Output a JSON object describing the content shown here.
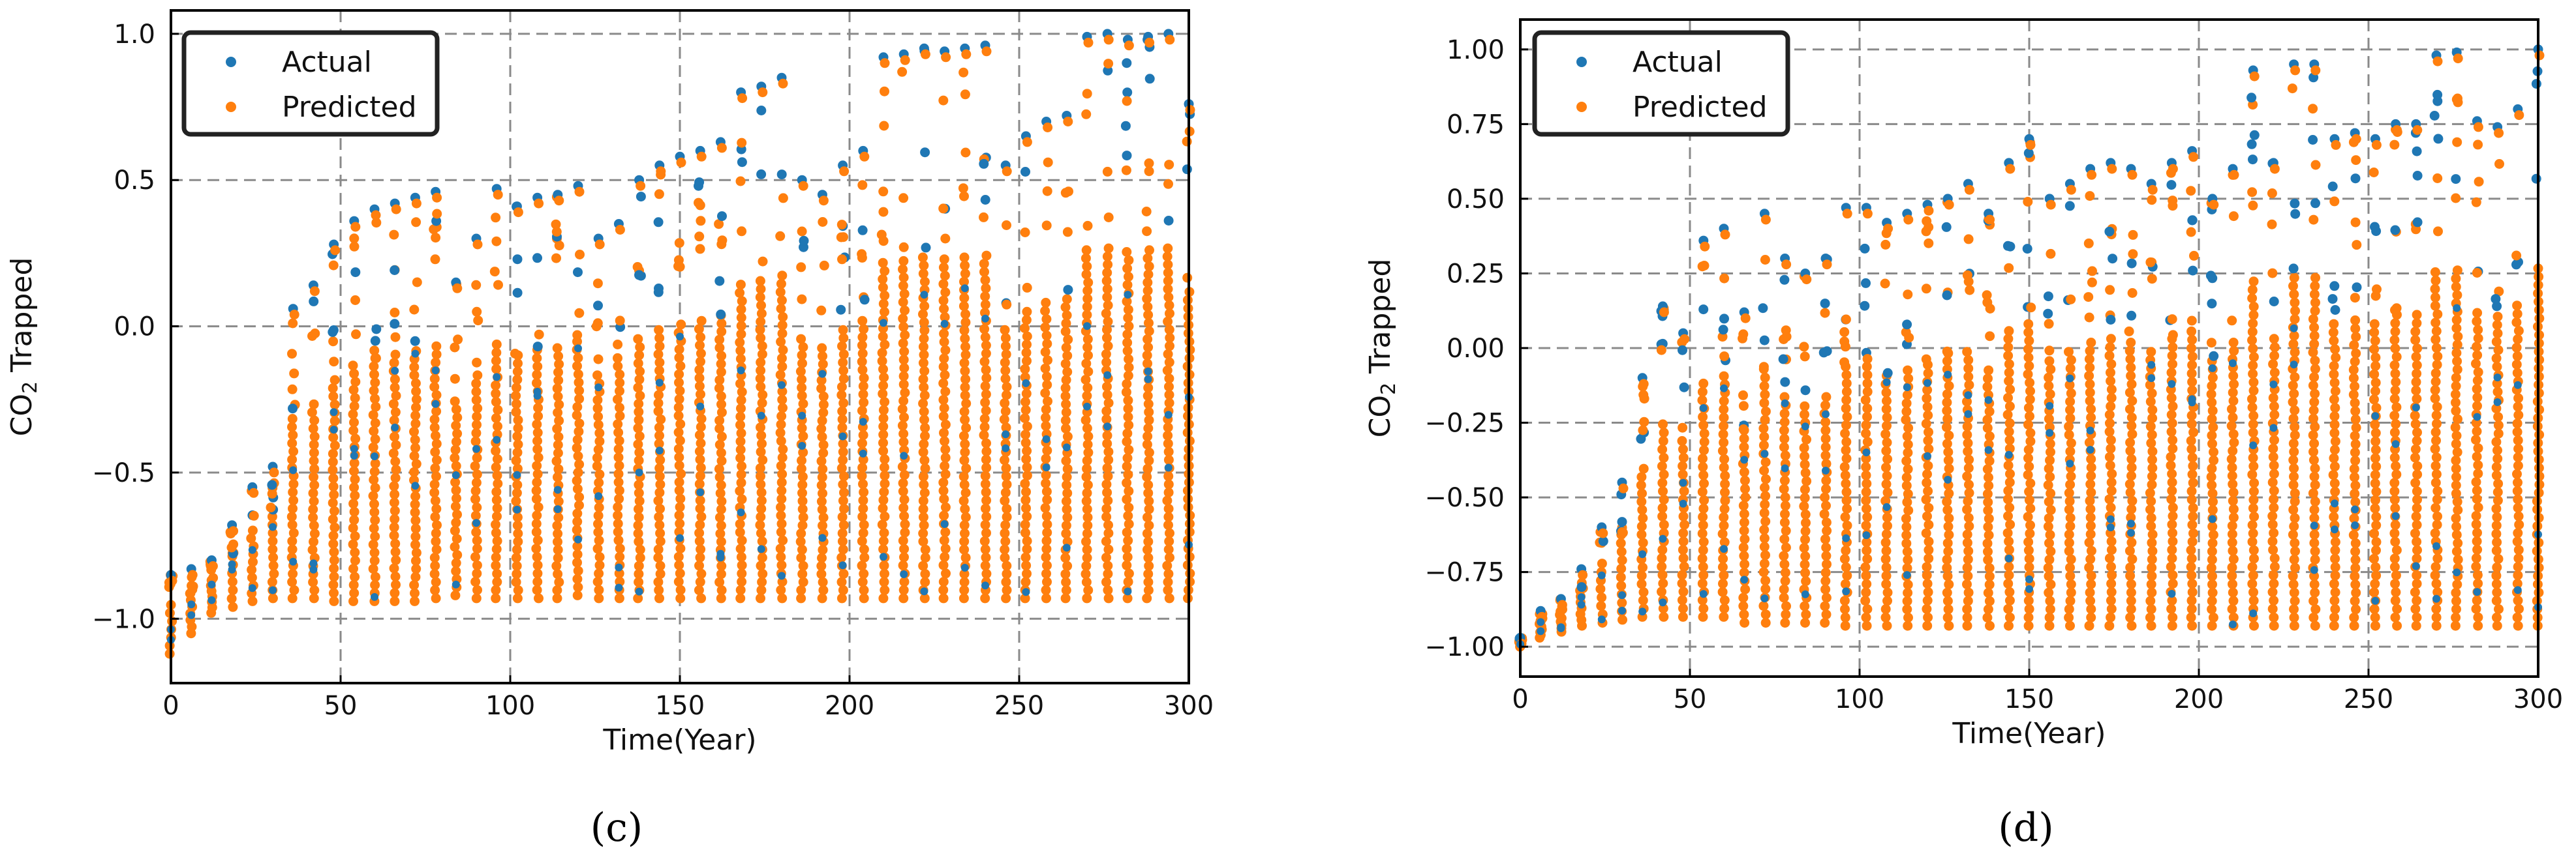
{
  "chart_data": [
    {
      "type": "scatter",
      "panel_label": "(c)",
      "xlabel": "Time(Year)",
      "ylabel_main": "CO",
      "ylabel_sub": "2",
      "ylabel_rest": " Trapped",
      "xlim": [
        0,
        300
      ],
      "ylim": [
        -1.22,
        1.08
      ],
      "xticks": [
        0,
        50,
        100,
        150,
        200,
        250,
        300
      ],
      "xtick_labels": [
        "0",
        "50",
        "100",
        "150",
        "200",
        "250",
        "300"
      ],
      "yticks": [
        -1.0,
        -0.5,
        0.0,
        0.5,
        1.0
      ],
      "ytick_labels": [
        "−1.0",
        "−0.5",
        "0.0",
        "0.5",
        "1.0"
      ],
      "grid": true,
      "legend_position": "top-left",
      "series": [
        {
          "name": "Actual",
          "color": "#1f77b4"
        },
        {
          "name": "Predicted",
          "color": "#ff7f0e"
        }
      ],
      "time_step": 6,
      "columns": [
        [
          0,
          -1.12,
          -0.85
        ],
        [
          6,
          -1.05,
          -0.83
        ],
        [
          12,
          -0.98,
          -0.8
        ],
        [
          18,
          -0.96,
          -0.68
        ],
        [
          24,
          -0.94,
          -0.55
        ],
        [
          30,
          -0.93,
          -0.48
        ],
        [
          36,
          -0.93,
          0.06
        ],
        [
          42,
          -0.93,
          0.14
        ],
        [
          48,
          -0.94,
          0.28
        ],
        [
          54,
          -0.94,
          0.36
        ],
        [
          60,
          -0.94,
          0.4
        ],
        [
          66,
          -0.94,
          0.42
        ],
        [
          72,
          -0.94,
          0.44
        ],
        [
          78,
          -0.93,
          0.46
        ],
        [
          84,
          -0.92,
          0.15
        ],
        [
          90,
          -0.93,
          0.3
        ],
        [
          96,
          -0.93,
          0.47
        ],
        [
          102,
          -0.93,
          0.41
        ],
        [
          108,
          -0.93,
          0.44
        ],
        [
          114,
          -0.93,
          0.45
        ],
        [
          120,
          -0.92,
          0.48
        ],
        [
          126,
          -0.93,
          0.3
        ],
        [
          132,
          -0.93,
          0.35
        ],
        [
          138,
          -0.93,
          0.5
        ],
        [
          144,
          -0.93,
          0.55
        ],
        [
          150,
          -0.93,
          0.58
        ],
        [
          156,
          -0.93,
          0.6
        ],
        [
          162,
          -0.93,
          0.63
        ],
        [
          168,
          -0.93,
          0.8
        ],
        [
          174,
          -0.93,
          0.82
        ],
        [
          180,
          -0.93,
          0.85
        ],
        [
          186,
          -0.93,
          0.5
        ],
        [
          192,
          -0.93,
          0.45
        ],
        [
          198,
          -0.93,
          0.55
        ],
        [
          204,
          -0.93,
          0.6
        ],
        [
          210,
          -0.93,
          0.92
        ],
        [
          216,
          -0.93,
          0.93
        ],
        [
          222,
          -0.93,
          0.95
        ],
        [
          228,
          -0.93,
          0.94
        ],
        [
          234,
          -0.93,
          0.95
        ],
        [
          240,
          -0.93,
          0.96
        ],
        [
          246,
          -0.93,
          0.55
        ],
        [
          252,
          -0.93,
          0.65
        ],
        [
          258,
          -0.93,
          0.7
        ],
        [
          264,
          -0.93,
          0.72
        ],
        [
          270,
          -0.93,
          0.99
        ],
        [
          276,
          -0.93,
          1.0
        ],
        [
          282,
          -0.93,
          0.98
        ],
        [
          288,
          -0.93,
          0.99
        ],
        [
          294,
          -0.93,
          1.0
        ],
        [
          300,
          -0.93,
          0.76
        ]
      ]
    },
    {
      "type": "scatter",
      "panel_label": "(d)",
      "xlabel": "Time(Year)",
      "ylabel_main": "CO",
      "ylabel_sub": "2",
      "ylabel_rest": " Trapped",
      "xlim": [
        0,
        300
      ],
      "ylim": [
        -1.1,
        1.1
      ],
      "xticks": [
        0,
        50,
        100,
        150,
        200,
        250,
        300
      ],
      "xtick_labels": [
        "0",
        "50",
        "100",
        "150",
        "200",
        "250",
        "300"
      ],
      "yticks": [
        -1.0,
        -0.75,
        -0.5,
        -0.25,
        0.0,
        0.25,
        0.5,
        0.75,
        1.0
      ],
      "ytick_labels": [
        "−1.00",
        "−0.75",
        "−0.50",
        "−0.25",
        "0.00",
        "0.25",
        "0.50",
        "0.75",
        "1.00"
      ],
      "grid": true,
      "legend_position": "top-left",
      "series": [
        {
          "name": "Actual",
          "color": "#1f77b4"
        },
        {
          "name": "Predicted",
          "color": "#ff7f0e"
        }
      ],
      "time_step": 6,
      "columns": [
        [
          0,
          -1.0,
          -0.97
        ],
        [
          6,
          -0.97,
          -0.88
        ],
        [
          12,
          -0.95,
          -0.84
        ],
        [
          18,
          -0.93,
          -0.74
        ],
        [
          24,
          -0.92,
          -0.6
        ],
        [
          30,
          -0.91,
          -0.45
        ],
        [
          36,
          -0.9,
          -0.1
        ],
        [
          42,
          -0.9,
          0.14
        ],
        [
          48,
          -0.9,
          0.05
        ],
        [
          54,
          -0.9,
          0.36
        ],
        [
          60,
          -0.9,
          0.4
        ],
        [
          66,
          -0.92,
          0.12
        ],
        [
          72,
          -0.92,
          0.45
        ],
        [
          78,
          -0.92,
          0.3
        ],
        [
          84,
          -0.92,
          0.25
        ],
        [
          90,
          -0.92,
          0.3
        ],
        [
          96,
          -0.93,
          0.47
        ],
        [
          102,
          -0.93,
          0.47
        ],
        [
          108,
          -0.93,
          0.42
        ],
        [
          114,
          -0.93,
          0.45
        ],
        [
          120,
          -0.93,
          0.48
        ],
        [
          126,
          -0.93,
          0.5
        ],
        [
          132,
          -0.93,
          0.55
        ],
        [
          138,
          -0.93,
          0.45
        ],
        [
          144,
          -0.93,
          0.62
        ],
        [
          150,
          -0.93,
          0.7
        ],
        [
          156,
          -0.93,
          0.5
        ],
        [
          162,
          -0.93,
          0.55
        ],
        [
          168,
          -0.93,
          0.6
        ],
        [
          174,
          -0.93,
          0.62
        ],
        [
          180,
          -0.93,
          0.6
        ],
        [
          186,
          -0.93,
          0.55
        ],
        [
          192,
          -0.93,
          0.62
        ],
        [
          198,
          -0.93,
          0.66
        ],
        [
          204,
          -0.93,
          0.5
        ],
        [
          210,
          -0.93,
          0.6
        ],
        [
          216,
          -0.93,
          0.93
        ],
        [
          222,
          -0.93,
          0.62
        ],
        [
          228,
          -0.93,
          0.95
        ],
        [
          234,
          -0.93,
          0.95
        ],
        [
          240,
          -0.93,
          0.7
        ],
        [
          246,
          -0.93,
          0.72
        ],
        [
          252,
          -0.93,
          0.7
        ],
        [
          258,
          -0.93,
          0.75
        ],
        [
          264,
          -0.93,
          0.75
        ],
        [
          270,
          -0.93,
          0.98
        ],
        [
          276,
          -0.93,
          0.99
        ],
        [
          282,
          -0.93,
          0.76
        ],
        [
          288,
          -0.93,
          0.74
        ],
        [
          294,
          -0.93,
          0.8
        ],
        [
          300,
          -0.93,
          1.0
        ]
      ]
    }
  ]
}
